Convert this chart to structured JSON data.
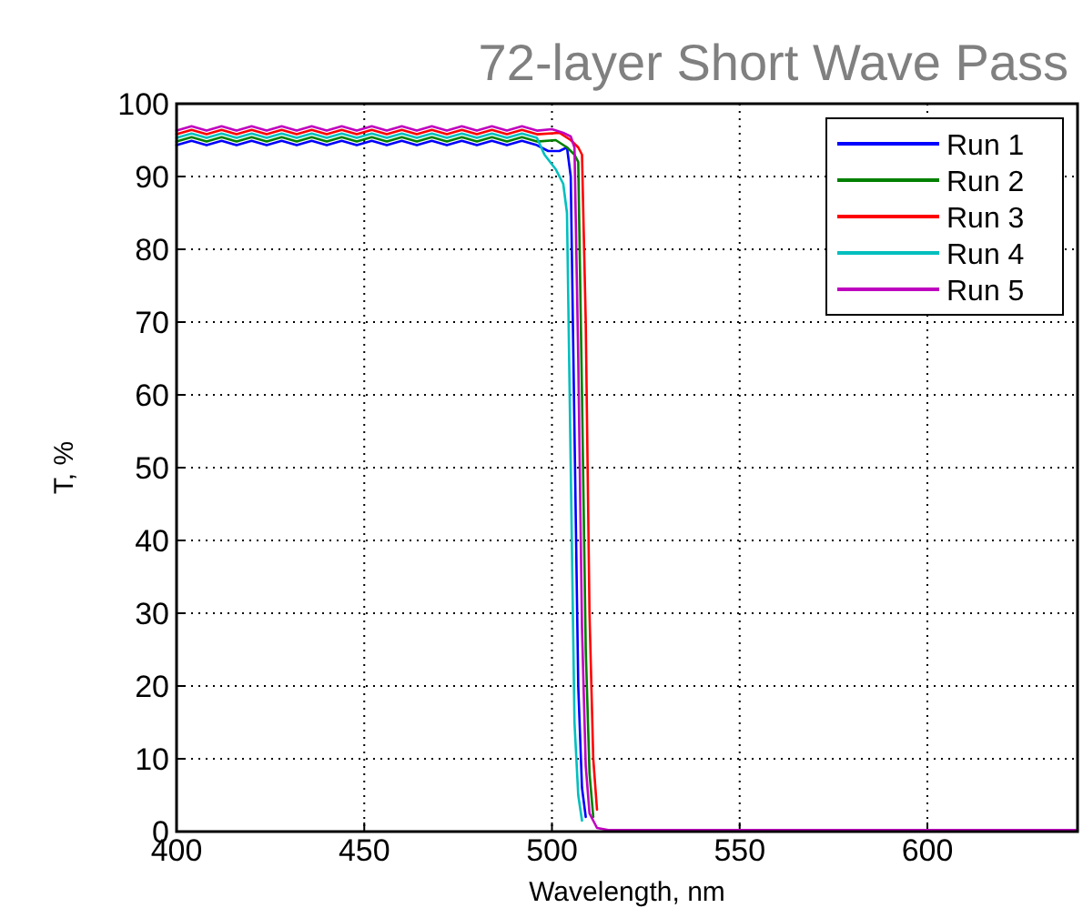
{
  "chart_data": {
    "type": "line",
    "title": "72-layer Short Wave Pass",
    "xlabel": "Wavelength, nm",
    "ylabel": "T, %",
    "series": [
      {
        "name": "Run 1",
        "color": "#0000ff",
        "x": [
          400,
          404,
          408,
          412,
          416,
          420,
          424,
          428,
          432,
          436,
          440,
          444,
          448,
          452,
          456,
          460,
          464,
          468,
          472,
          476,
          480,
          484,
          488,
          492,
          496,
          499,
          502,
          504,
          505,
          506,
          507,
          508,
          509
        ],
        "values": [
          94.3,
          94.9,
          94.3,
          94.9,
          94.3,
          94.9,
          94.3,
          94.9,
          94.3,
          94.9,
          94.3,
          94.9,
          94.3,
          94.9,
          94.3,
          94.9,
          94.3,
          94.9,
          94.3,
          94.9,
          94.3,
          94.9,
          94.3,
          94.9,
          94.3,
          93.5,
          93.5,
          94,
          90,
          55,
          20,
          6,
          2
        ]
      },
      {
        "name": "Run 2",
        "color": "#008000",
        "x": [
          400,
          404,
          408,
          412,
          416,
          420,
          424,
          428,
          432,
          436,
          440,
          444,
          448,
          452,
          456,
          460,
          464,
          468,
          472,
          476,
          480,
          484,
          488,
          492,
          496,
          501,
          504,
          506,
          507,
          508,
          509,
          510,
          511
        ],
        "values": [
          94.8,
          95.4,
          94.8,
          95.4,
          94.8,
          95.4,
          94.8,
          95.4,
          94.8,
          95.4,
          94.8,
          95.4,
          94.8,
          95.4,
          94.8,
          95.4,
          94.8,
          95.4,
          94.8,
          95.4,
          94.8,
          95.4,
          94.8,
          95.4,
          94.8,
          95,
          94,
          93,
          92,
          60,
          25,
          8,
          2
        ]
      },
      {
        "name": "Run 3",
        "color": "#ff0000",
        "x": [
          400,
          404,
          408,
          412,
          416,
          420,
          424,
          428,
          432,
          436,
          440,
          444,
          448,
          452,
          456,
          460,
          464,
          468,
          472,
          476,
          480,
          484,
          488,
          492,
          496,
          502,
          505,
          507,
          508,
          509,
          510,
          511,
          512
        ],
        "values": [
          95.8,
          96.4,
          95.8,
          96.4,
          95.8,
          96.4,
          95.8,
          96.4,
          95.8,
          96.4,
          95.8,
          96.4,
          95.8,
          96.4,
          95.8,
          96.4,
          95.8,
          96.4,
          95.8,
          96.4,
          95.8,
          96.4,
          95.8,
          96.4,
          95.8,
          96,
          95,
          94,
          93,
          70,
          30,
          10,
          3
        ]
      },
      {
        "name": "Run 4",
        "color": "#00bfbf",
        "x": [
          400,
          404,
          408,
          412,
          416,
          420,
          424,
          428,
          432,
          436,
          440,
          444,
          448,
          452,
          456,
          460,
          464,
          468,
          472,
          476,
          480,
          484,
          488,
          492,
          496,
          498,
          501,
          503,
          504,
          505,
          506,
          507,
          508
        ],
        "values": [
          95.3,
          95.9,
          95.3,
          95.9,
          95.3,
          95.9,
          95.3,
          95.9,
          95.3,
          95.9,
          95.3,
          95.9,
          95.3,
          95.9,
          95.3,
          95.9,
          95.3,
          95.9,
          95.3,
          95.9,
          95.3,
          95.9,
          95.3,
          95.9,
          95.3,
          93,
          91,
          89,
          85,
          50,
          15,
          5,
          1.5
        ]
      },
      {
        "name": "Run 5",
        "color": "#bf00bf",
        "x": [
          400,
          404,
          408,
          412,
          416,
          420,
          424,
          428,
          432,
          436,
          440,
          444,
          448,
          452,
          456,
          460,
          464,
          468,
          472,
          476,
          480,
          484,
          488,
          492,
          496,
          500,
          503,
          505,
          506,
          507,
          508,
          509,
          510,
          512,
          515,
          530,
          560,
          600,
          640
        ],
        "values": [
          96.3,
          96.9,
          96.3,
          96.9,
          96.3,
          96.9,
          96.3,
          96.9,
          96.3,
          96.9,
          96.3,
          96.9,
          96.3,
          96.9,
          96.3,
          96.9,
          96.3,
          96.9,
          96.3,
          96.9,
          96.3,
          96.9,
          96.3,
          96.9,
          96.3,
          96.5,
          96,
          95.5,
          94,
          65,
          28,
          9,
          2.5,
          0.5,
          0.2,
          0.2,
          0.2,
          0.2,
          0.2
        ]
      }
    ],
    "xlim": [
      400,
      640
    ],
    "xticks": [
      400,
      450,
      500,
      550,
      600
    ],
    "ylim": [
      0,
      100
    ],
    "yticks": [
      0,
      10,
      20,
      30,
      40,
      50,
      60,
      70,
      80,
      90,
      100
    ],
    "grid": true,
    "legend": "top right",
    "marker": "none",
    "line_style": "solid"
  }
}
